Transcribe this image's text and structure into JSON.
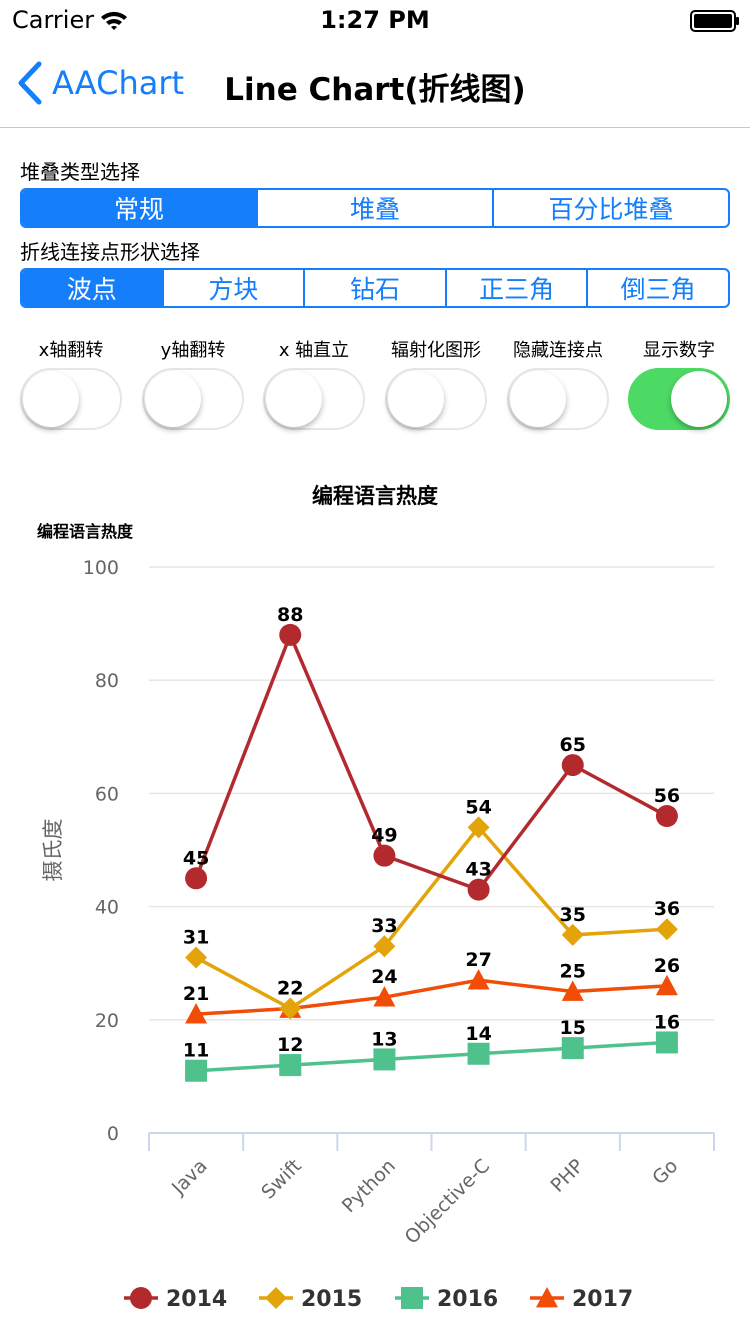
{
  "status_bar": {
    "carrier": "Carrier",
    "time": "1:27 PM"
  },
  "nav": {
    "back_label": "AAChart",
    "title": "Line Chart(折线图)"
  },
  "stacking": {
    "label": "堆叠类型选择",
    "options": [
      "常规",
      "堆叠",
      "百分比堆叠"
    ],
    "selected": 0
  },
  "marker_shape": {
    "label": "折线连接点形状选择",
    "options": [
      "波点",
      "方块",
      "钻石",
      "正三角",
      "倒三角"
    ],
    "selected": 0
  },
  "switches": [
    {
      "label": "x轴翻转",
      "on": false
    },
    {
      "label": "y轴翻转",
      "on": false
    },
    {
      "label": "x 轴直立",
      "on": false
    },
    {
      "label": "辐射化图形",
      "on": false
    },
    {
      "label": "隐藏连接点",
      "on": false
    },
    {
      "label": "显示数字",
      "on": true
    }
  ],
  "colors": {
    "accent": "#147efb",
    "switch_on": "#4cd964"
  },
  "chart_data": {
    "type": "line",
    "title": "编程语言热度",
    "subtitle": "编程语言热度",
    "ylabel": "摄氏度",
    "xlabel": "",
    "categories": [
      "Java",
      "Swift",
      "Python",
      "Objective-C",
      "PHP",
      "Go"
    ],
    "ylim": [
      0,
      100
    ],
    "yticks": [
      0,
      20,
      40,
      60,
      80,
      100
    ],
    "grid": true,
    "legend_position": "bottom",
    "data_labels": true,
    "series": [
      {
        "name": "2014",
        "color": "#b22a2e",
        "marker": "circle",
        "values": [
          45,
          88,
          49,
          43,
          65,
          56
        ]
      },
      {
        "name": "2015",
        "color": "#e3a40a",
        "marker": "diamond",
        "values": [
          31,
          22,
          33,
          54,
          35,
          36
        ]
      },
      {
        "name": "2016",
        "color": "#4fc18d",
        "marker": "square",
        "values": [
          11,
          12,
          13,
          14,
          15,
          16
        ]
      },
      {
        "name": "2017",
        "color": "#f24c07",
        "marker": "triangle",
        "values": [
          21,
          22,
          24,
          27,
          25,
          26
        ]
      }
    ]
  }
}
